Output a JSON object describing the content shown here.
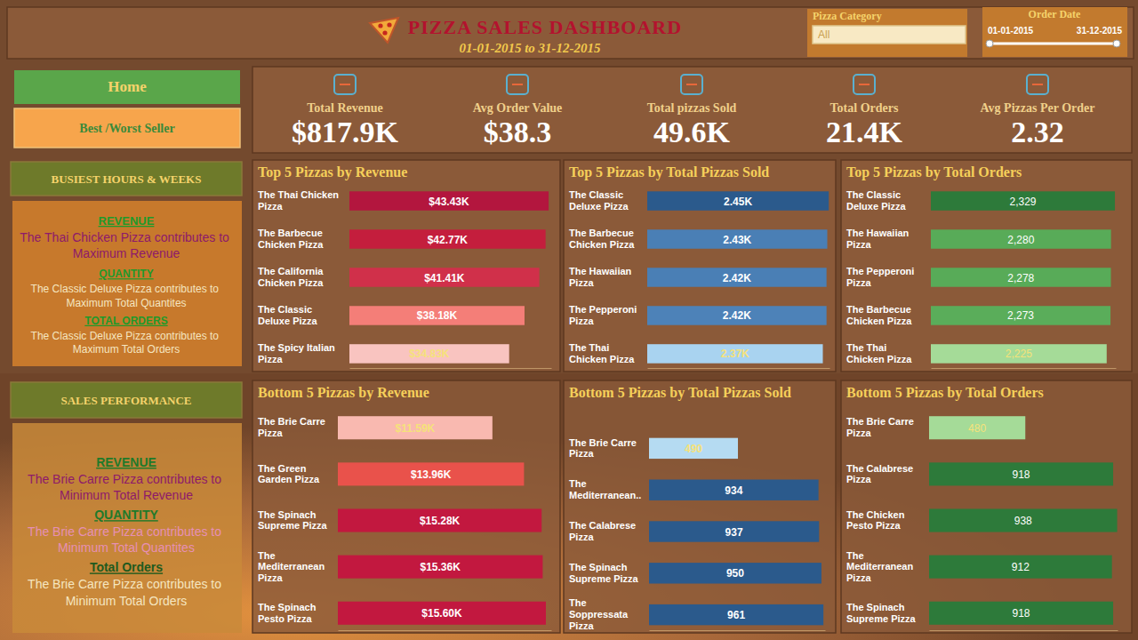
{
  "header": {
    "title": "PIZZA SALES DASHBOARD",
    "subtitle": "01-01-2015 to 31-12-2015"
  },
  "filters": {
    "category": {
      "label": "Pizza Category",
      "value": "All"
    },
    "order_date": {
      "label": "Order Date",
      "start": "01-01-2015",
      "end": "31-12-2015"
    }
  },
  "nav": [
    "Home",
    "Best /Worst Seller"
  ],
  "kpis": [
    {
      "label": "Total Revenue",
      "value": "$817.9K"
    },
    {
      "label": "Avg Order Value",
      "value": "$38.3"
    },
    {
      "label": "Total pizzas Sold",
      "value": "49.6K"
    },
    {
      "label": "Total Orders",
      "value": "21.4K"
    },
    {
      "label": "Avg Pizzas Per Order",
      "value": "2.32"
    }
  ],
  "panels": [
    {
      "title": "BUSIEST HOURS & WEEKS",
      "items": [
        {
          "heading": "REVENUE",
          "text": "The Thai Chicken Pizza contributes to Maximum Revenue"
        },
        {
          "heading": "QUANTITY",
          "text": "The Classic Deluxe Pizza contributes to Maximum Total Quantites"
        },
        {
          "heading": "TOTAL ORDERS",
          "text": "The Classic Deluxe Pizza contributes to Maximum Total Orders"
        }
      ]
    },
    {
      "title": "SALES PERFORMANCE",
      "items": [
        {
          "heading": "REVENUE",
          "text": "The Brie Carre Pizza contributes to Minimum Total Revenue"
        },
        {
          "heading": "QUANTITY",
          "text": "The Brie Carre Pizza contributes to Minimum Total Quantites"
        },
        {
          "heading": "Total Orders",
          "text": "The Brie Carre Pizza contributes to Minimum Total Orders"
        }
      ]
    }
  ],
  "chart_data": [
    {
      "type": "bar",
      "orientation": "horizontal",
      "title": "Top 5 Pizzas by Revenue",
      "categories": [
        "The Thai Chicken Pizza",
        "The Barbecue Chicken Pizza",
        "The California Chicken Pizza",
        "The Classic Deluxe Pizza",
        "The Spicy Italian Pizza"
      ],
      "values": [
        43430,
        42770,
        41410,
        38180,
        34830
      ],
      "value_labels": [
        "$43.43K",
        "$42.77K",
        "$41.41K",
        "$38.18K",
        "$34.83K"
      ],
      "colors": [
        "#b3163e",
        "#c41e3d",
        "#d0304a",
        "#f47e78",
        "#f9c4c0"
      ],
      "xlim": [
        0,
        44000
      ],
      "data_labels": true,
      "tick_labels": "y",
      "grid": false
    },
    {
      "type": "bar",
      "orientation": "horizontal",
      "title": "Top 5 Pizzas by Total Pizzas Sold",
      "categories": [
        "The Classic Deluxe Pizza",
        "The Barbecue Chicken Pizza",
        "The Hawaiian Pizza",
        "The Pepperoni Pizza",
        "The Thai Chicken Pizza"
      ],
      "values": [
        2450,
        2430,
        2420,
        2420,
        2370
      ],
      "value_labels": [
        "2.45K",
        "2.43K",
        "2.42K",
        "2.42K",
        "2.37K"
      ],
      "colors": [
        "#2b5a8c",
        "#4a7fb5",
        "#4a7fb5",
        "#4d82b8",
        "#a9d3f0"
      ],
      "xlim": [
        0,
        2460
      ],
      "data_labels": true,
      "tick_labels": "y",
      "grid": false
    },
    {
      "type": "bar",
      "orientation": "horizontal",
      "title": "Top 5 Pizzas by Total Orders",
      "categories": [
        "The Classic Deluxe Pizza",
        "The Hawaiian Pizza",
        "The Pepperoni Pizza",
        "The Barbecue Chicken Pizza",
        "The Thai Chicken Pizza"
      ],
      "values": [
        2329,
        2280,
        2278,
        2273,
        2225
      ],
      "value_labels": [
        "2,329",
        "2,280",
        "2,278",
        "2,273",
        "2,225"
      ],
      "colors": [
        "#2d7a3a",
        "#58ab58",
        "#58ab58",
        "#5aad5a",
        "#a5db98"
      ],
      "xlim": [
        0,
        2340
      ],
      "data_labels": true,
      "tick_labels": "y",
      "grid": false
    },
    {
      "type": "bar",
      "orientation": "horizontal",
      "title": "Bottom 5 Pizzas by Revenue",
      "categories": [
        "The Brie Carre Pizza",
        "The Green Garden Pizza",
        "The Spinach Supreme Pizza",
        "The Mediterranean Pizza",
        "The Spinach Pesto Pizza"
      ],
      "values": [
        11590,
        13960,
        15280,
        15360,
        15600
      ],
      "value_labels": [
        "$11.59K",
        "$13.96K",
        "$15.28K",
        "$15.36K",
        "$15.60K"
      ],
      "colors": [
        "#f9b9b0",
        "#e9524b",
        "#c2183f",
        "#c2183f",
        "#c2183f"
      ],
      "xlim": [
        0,
        16000
      ],
      "data_labels": true,
      "tick_labels": "y",
      "grid": false
    },
    {
      "type": "bar",
      "orientation": "horizontal",
      "title": "Bottom 5 Pizzas by Total Pizzas Sold",
      "categories": [
        "The Brie Carre Pizza",
        "The Mediterranean..",
        "The Calabrese Pizza",
        "The Spinach Supreme Pizza",
        "The Soppressata Pizza"
      ],
      "values": [
        490,
        934,
        937,
        950,
        961
      ],
      "colors": [
        "#b5dbf2",
        "#2b5a8c",
        "#2b5a8c",
        "#2b5a8c",
        "#2b5a8c"
      ],
      "xlim": [
        0,
        970
      ],
      "data_labels": true,
      "tick_labels": "y",
      "grid": false
    },
    {
      "type": "bar",
      "orientation": "horizontal",
      "title": "Bottom 5 Pizzas by Total Orders",
      "categories": [
        "The Brie Carre Pizza",
        "The Calabrese Pizza",
        "The Chicken Pesto Pizza",
        "The Mediterranean Pizza",
        "The Spinach Supreme Pizza"
      ],
      "values": [
        480,
        918,
        938,
        912,
        918
      ],
      "colors": [
        "#a5db98",
        "#2d7a3a",
        "#2d7a3a",
        "#2d7a3a",
        "#2d7a3a"
      ],
      "xlim": [
        0,
        940
      ],
      "data_labels": true,
      "tick_labels": "y",
      "grid": false
    }
  ]
}
